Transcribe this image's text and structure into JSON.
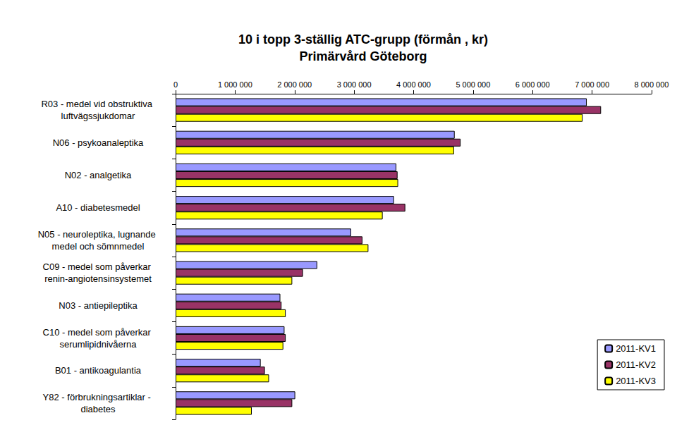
{
  "chart_data": {
    "type": "bar",
    "orientation": "horizontal",
    "title": "10 i topp 3-ställig ATC-grupp (förmån , kr)",
    "subtitle": "Primärvård Göteborg",
    "categories": [
      "R03 - medel vid obstruktiva luftvägssjukdomar",
      "N06 - psykoanaleptika",
      "N02 - analgetika",
      "A10 - diabetesmedel",
      "N05 - neuroleptika, lugnande medel och sömnmedel",
      "C09 - medel som påverkar renin-angiotensinsystemet",
      "N03 - antiepileptika",
      "C10 - medel som påverkar serumlipidnivåerna",
      "B01 - antikoagulantia",
      "Y82 - förbrukningsartiklar - diabetes"
    ],
    "series": [
      {
        "name": "2011-KV1",
        "color": "#9999ff",
        "values": [
          6910000,
          4690000,
          3710000,
          3670000,
          2950000,
          2380000,
          1760000,
          1830000,
          1430000,
          2010000
        ]
      },
      {
        "name": "2011-KV2",
        "color": "#993366",
        "values": [
          7150000,
          4790000,
          3730000,
          3860000,
          3140000,
          2140000,
          1780000,
          1850000,
          1500000,
          1960000
        ]
      },
      {
        "name": "2011-KV3",
        "color": "#ffff00",
        "values": [
          6840000,
          4680000,
          3740000,
          3480000,
          3240000,
          1960000,
          1850000,
          1810000,
          1570000,
          1280000
        ]
      }
    ],
    "xlim": [
      0,
      8000000
    ],
    "xticks": [
      0,
      {
        "value": 1000000,
        "label": "1 000 000"
      },
      {
        "value": 2000000,
        "label": "2 000 000"
      },
      {
        "value": 3000000,
        "label": "3 000 000"
      },
      {
        "value": 4000000,
        "label": "4 000 000"
      },
      {
        "value": 5000000,
        "label": "5 000 000"
      },
      {
        "value": 6000000,
        "label": "6 000 000"
      },
      {
        "value": 7000000,
        "label": "7 000 000"
      },
      {
        "value": 8000000,
        "label": "8 000 000"
      }
    ],
    "grid": false,
    "legend": "lower right"
  }
}
